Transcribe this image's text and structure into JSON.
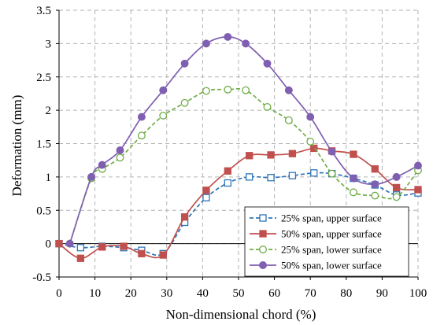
{
  "chart_data": {
    "type": "line",
    "xlabel": "Non-dimensional chord (%)",
    "ylabel": "Deformation (mm)",
    "xlim": [
      0,
      100
    ],
    "ylim": [
      -0.5,
      3.5
    ],
    "x_ticks": [
      0,
      10,
      20,
      30,
      40,
      50,
      60,
      70,
      80,
      90,
      100
    ],
    "y_ticks": [
      -0.5,
      0,
      0.5,
      1,
      1.5,
      2,
      2.5,
      3,
      3.5
    ],
    "x_tick_labels": [
      "0",
      "10",
      "20",
      "30",
      "40",
      "50",
      "60",
      "70",
      "80",
      "90",
      "100"
    ],
    "y_tick_labels": [
      "-0.5",
      "0",
      "0.5",
      "1",
      "1.5",
      "2",
      "2.5",
      "3",
      "3.5"
    ],
    "grid": true,
    "legend_position": "bottom-right",
    "series": [
      {
        "name": "25% span, upper surface",
        "color": "#2e75b6",
        "line": "dashed",
        "marker": "open-square",
        "x": [
          0,
          6,
          12,
          18,
          23,
          29,
          35,
          41,
          47,
          53,
          59,
          65,
          71,
          76,
          82,
          88,
          94,
          100
        ],
        "y": [
          0,
          -0.06,
          -0.04,
          -0.06,
          -0.1,
          -0.15,
          0.32,
          0.69,
          0.91,
          1.0,
          0.99,
          1.02,
          1.06,
          1.05,
          0.98,
          0.88,
          0.73,
          0.76
        ]
      },
      {
        "name": "50% span, upper surface",
        "color": "#c0504d",
        "line": "solid",
        "marker": "filled-square",
        "x": [
          0,
          6,
          12,
          18,
          23,
          29,
          35,
          41,
          47,
          53,
          59,
          65,
          71,
          76,
          82,
          88,
          94,
          100
        ],
        "y": [
          0,
          -0.22,
          -0.05,
          -0.04,
          -0.15,
          -0.17,
          0.4,
          0.8,
          1.09,
          1.32,
          1.33,
          1.35,
          1.43,
          1.39,
          1.34,
          1.12,
          0.84,
          0.81
        ]
      },
      {
        "name": "25% span, lower surface",
        "color": "#70ad47",
        "line": "dashed",
        "marker": "open-circle",
        "x": [
          3,
          9,
          12,
          17,
          23,
          29,
          35,
          41,
          47,
          52,
          58,
          64,
          70,
          76,
          82,
          88,
          94,
          100
        ],
        "y": [
          0,
          0.98,
          1.12,
          1.29,
          1.62,
          1.92,
          2.11,
          2.29,
          2.31,
          2.3,
          2.05,
          1.85,
          1.53,
          1.05,
          0.77,
          0.72,
          0.7,
          1.1
        ]
      },
      {
        "name": "50% span, lower surface",
        "color": "#7f5fb1",
        "line": "solid",
        "marker": "filled-circle",
        "x": [
          3,
          9,
          12,
          17,
          23,
          29,
          35,
          41,
          47,
          52,
          58,
          64,
          70,
          76,
          82,
          88,
          94,
          100
        ],
        "y": [
          0,
          1.0,
          1.18,
          1.4,
          1.9,
          2.3,
          2.7,
          3.0,
          3.1,
          3.0,
          2.7,
          2.3,
          1.9,
          1.38,
          0.98,
          0.89,
          1.0,
          1.17
        ]
      }
    ]
  }
}
